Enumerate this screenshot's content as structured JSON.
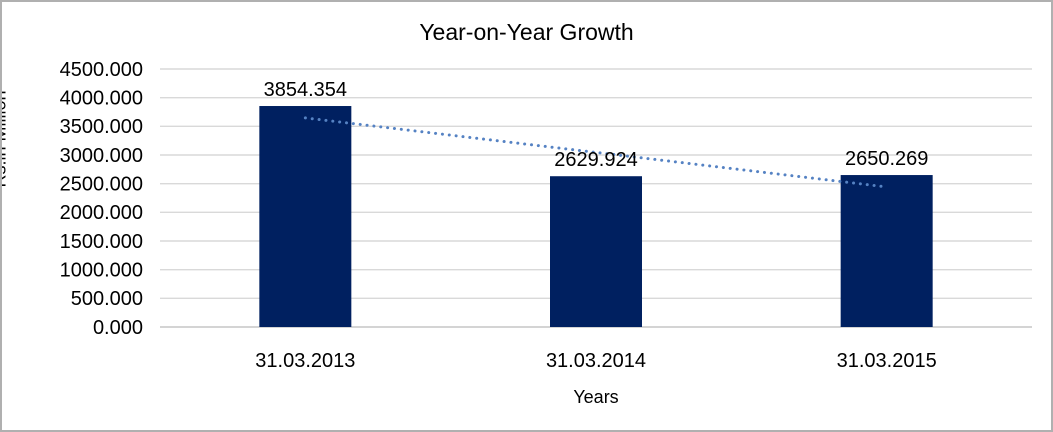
{
  "chart_data": {
    "type": "bar",
    "title": "Year-on-Year Growth",
    "categories": [
      "31.03.2013",
      "31.03.2014",
      "31.03.2015"
    ],
    "values": [
      3854.354,
      2629.924,
      2650.269
    ],
    "data_labels": [
      "3854.354",
      "2629.924",
      "2650.269"
    ],
    "xlabel": "Years",
    "ylabel": "Rs.in Million",
    "ylim": [
      0,
      4500
    ],
    "ytick_step": 500,
    "ytick_labels": [
      "4500.000",
      "4000.000",
      "3500.000",
      "3000.000",
      "2500.000",
      "2000.000",
      "1500.000",
      "1000.000",
      "500.000",
      "0.000"
    ],
    "grid": true,
    "legend": "none",
    "trendline": {
      "kind": "linear",
      "style": "dotted",
      "color": "#5582c3"
    },
    "colors": {
      "bar": "#002060",
      "gridline": "#d9d9d9",
      "axis_line": "#c6c6c6",
      "text": "#000000",
      "background": "#ffffff",
      "border": "#b0b0b0"
    }
  }
}
